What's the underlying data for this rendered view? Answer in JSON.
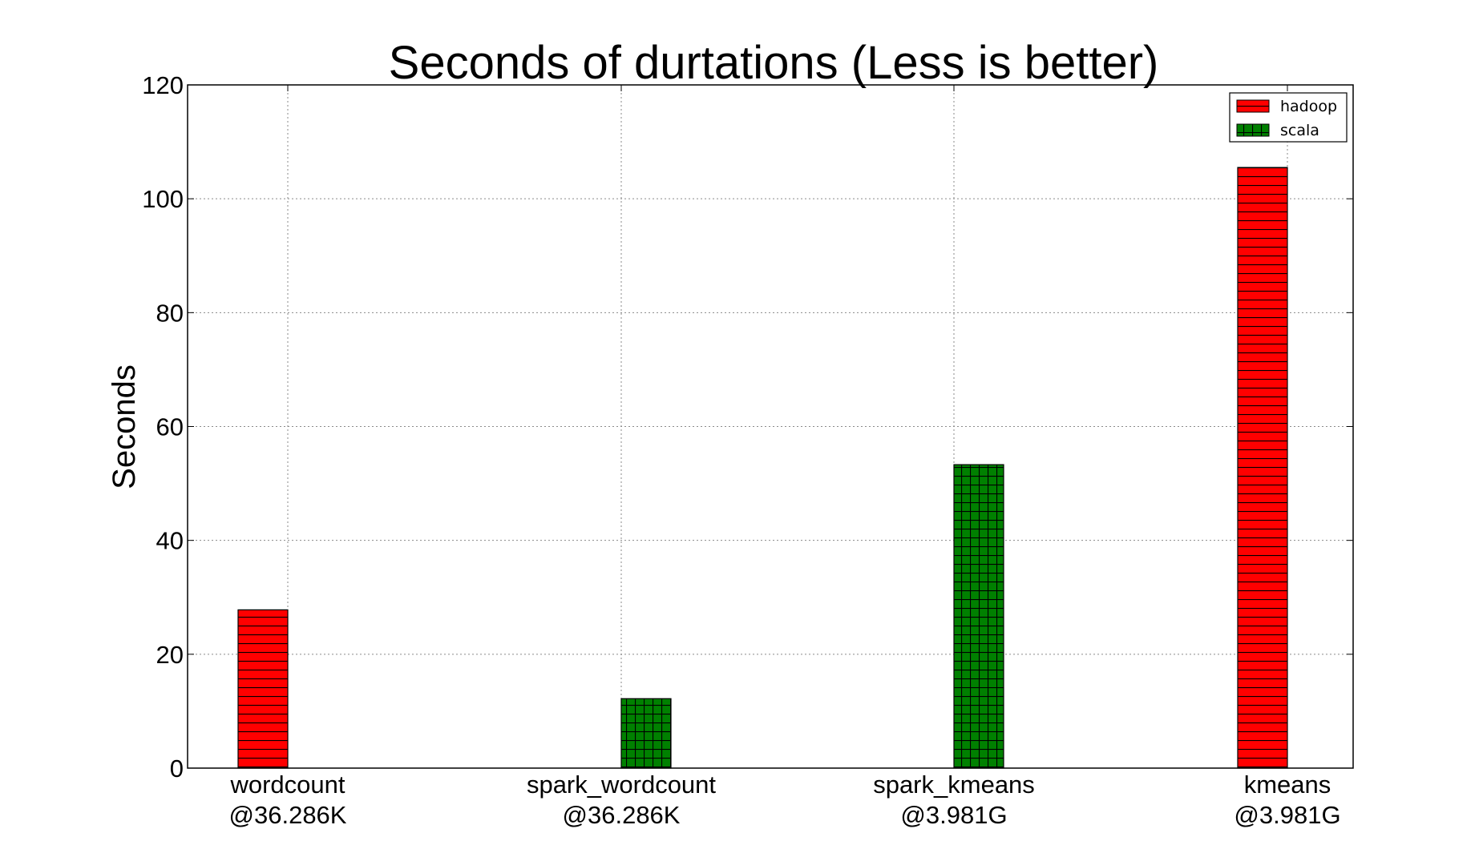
{
  "chart_data": {
    "type": "bar",
    "title": "Seconds of durtations (Less is better)",
    "xlabel": "",
    "ylabel": "Seconds",
    "ylim": [
      0,
      120
    ],
    "yticks": [
      "0",
      "20",
      "40",
      "60",
      "80",
      "100",
      "120"
    ],
    "grid": true,
    "legend_position": "top-right",
    "categories": [
      {
        "line1": "wordcount",
        "line2": "@36.286K"
      },
      {
        "line1": "spark_wordcount",
        "line2": "@36.286K"
      },
      {
        "line1": "spark_kmeans",
        "line2": "@3.981G"
      },
      {
        "line1": "kmeans",
        "line2": "@3.981G"
      }
    ],
    "series": [
      {
        "name": "hadoop",
        "color": "#ff0000",
        "hatch": "horizontal",
        "values": [
          27.8,
          null,
          null,
          105.5
        ]
      },
      {
        "name": "scala",
        "color": "#008000",
        "hatch": "grid",
        "values": [
          null,
          12.2,
          53.3,
          null
        ]
      }
    ]
  }
}
